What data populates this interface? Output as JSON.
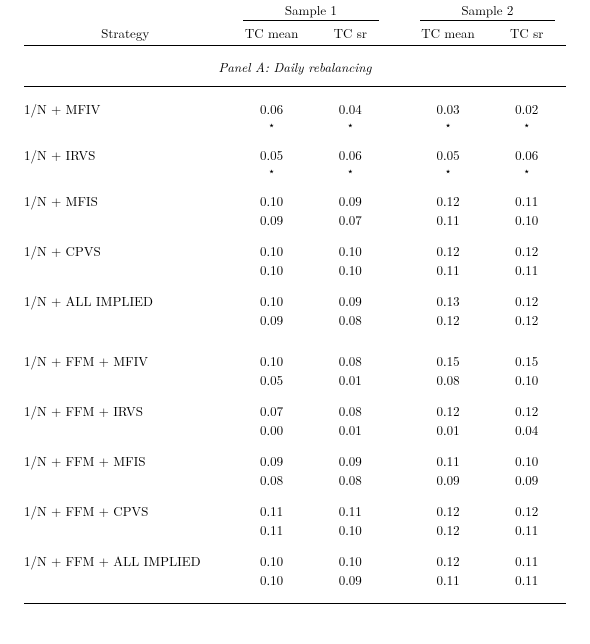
{
  "header": {
    "strategy_label": "Strategy",
    "sample1": "Sample 1",
    "sample2": "Sample 2",
    "tc_mean": "TC mean",
    "tc_sr": "TC sr"
  },
  "panel_title": "Panel A: Daily rebalancing",
  "star": "⋆",
  "groups": [
    {
      "name": "1/N + MFIV",
      "r1": [
        "0.06",
        "0.04",
        "0.03",
        "0.02"
      ],
      "r2": [
        "⋆",
        "⋆",
        "⋆",
        "⋆"
      ]
    },
    {
      "name": "1/N + IRVS",
      "r1": [
        "0.05",
        "0.06",
        "0.05",
        "0.06"
      ],
      "r2": [
        "⋆",
        "⋆",
        "⋆",
        "⋆"
      ]
    },
    {
      "name": "1/N + MFIS",
      "r1": [
        "0.10",
        "0.09",
        "0.12",
        "0.11"
      ],
      "r2": [
        "0.09",
        "0.07",
        "0.11",
        "0.10"
      ]
    },
    {
      "name": "1/N + CPVS",
      "r1": [
        "0.10",
        "0.10",
        "0.12",
        "0.12"
      ],
      "r2": [
        "0.10",
        "0.10",
        "0.11",
        "0.11"
      ]
    },
    {
      "name": "1/N + ALL IMPLIED",
      "r1": [
        "0.10",
        "0.09",
        "0.13",
        "0.12"
      ],
      "r2": [
        "0.09",
        "0.08",
        "0.12",
        "0.12"
      ]
    }
  ],
  "groups2": [
    {
      "name": "1/N + FFM + MFIV",
      "r1": [
        "0.10",
        "0.08",
        "0.15",
        "0.15"
      ],
      "r2": [
        "0.05",
        "0.01",
        "0.08",
        "0.10"
      ]
    },
    {
      "name": "1/N + FFM + IRVS",
      "r1": [
        "0.07",
        "0.08",
        "0.12",
        "0.12"
      ],
      "r2": [
        "0.00",
        "0.01",
        "0.01",
        "0.04"
      ]
    },
    {
      "name": "1/N + FFM + MFIS",
      "r1": [
        "0.09",
        "0.09",
        "0.11",
        "0.10"
      ],
      "r2": [
        "0.08",
        "0.08",
        "0.09",
        "0.09"
      ]
    },
    {
      "name": "1/N + FFM + CPVS",
      "r1": [
        "0.11",
        "0.11",
        "0.12",
        "0.12"
      ],
      "r2": [
        "0.11",
        "0.10",
        "0.12",
        "0.11"
      ]
    },
    {
      "name": "1/N + FFM + ALL IMPLIED",
      "r1": [
        "0.10",
        "0.10",
        "0.12",
        "0.11"
      ],
      "r2": [
        "0.10",
        "0.09",
        "0.11",
        "0.11"
      ]
    }
  ]
}
